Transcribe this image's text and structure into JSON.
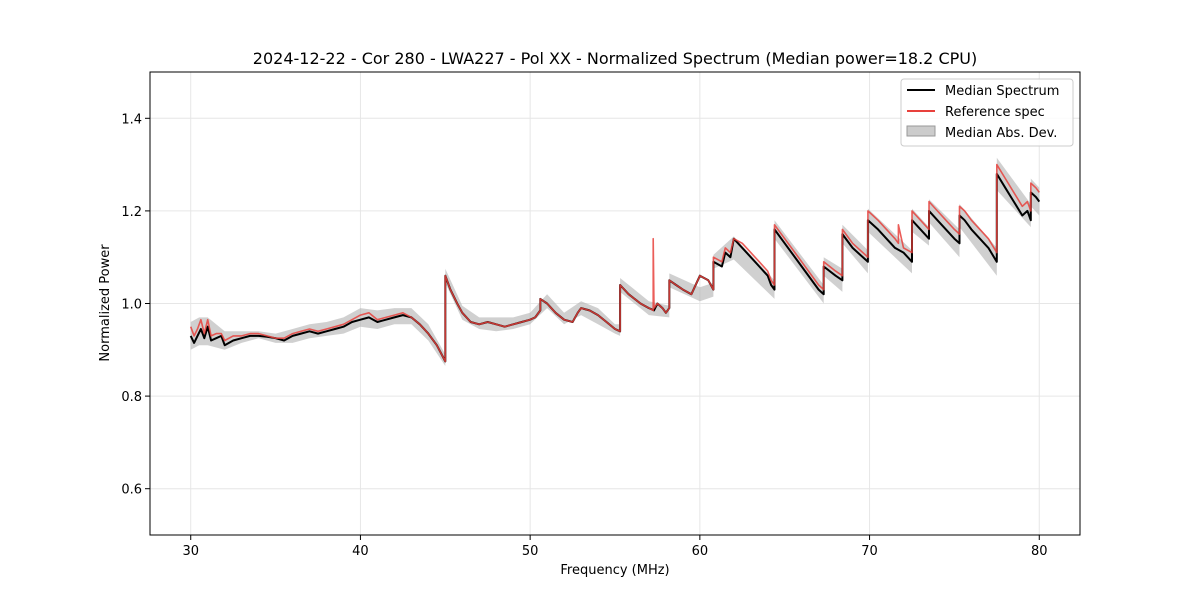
{
  "chart_data": {
    "type": "line",
    "title": "2024-12-22 - Cor 280 - LWA227 - Pol XX - Normalized Spectrum (Median power=18.2 CPU)",
    "xlabel": "Frequency (MHz)",
    "ylabel": "Normalized Power",
    "xlim": [
      27.6,
      82.4
    ],
    "ylim": [
      0.5,
      1.5
    ],
    "xticks": [
      30,
      40,
      50,
      60,
      70,
      80
    ],
    "yticks": [
      0.6,
      0.8,
      1.0,
      1.2,
      1.4
    ],
    "xtick_labels": [
      "30",
      "40",
      "50",
      "60",
      "70",
      "80"
    ],
    "ytick_labels": [
      "0.6",
      "0.8",
      "1.0",
      "1.2",
      "1.4"
    ],
    "grid": true,
    "legend_position": "top-right",
    "legend": [
      {
        "label": "Median Spectrum",
        "kind": "line",
        "color": "#000000"
      },
      {
        "label": "Reference spec",
        "kind": "line",
        "color": "#e8413c"
      },
      {
        "label": "Median Abs. Dev.",
        "kind": "band",
        "color": "#b0b0b0"
      }
    ],
    "series": [
      {
        "name": "Median Spectrum",
        "color": "#000000",
        "x": [
          30.0,
          30.2,
          30.4,
          30.6,
          30.8,
          31.0,
          31.2,
          31.5,
          31.8,
          32.0,
          32.5,
          33.0,
          33.5,
          34.0,
          34.5,
          35.0,
          35.5,
          36.0,
          36.5,
          37.0,
          37.5,
          38.0,
          38.5,
          39.0,
          39.5,
          40.0,
          40.5,
          41.0,
          41.5,
          42.0,
          42.5,
          43.0,
          43.5,
          44.0,
          44.5,
          45.0,
          45.0,
          45.3,
          45.7,
          46.0,
          46.5,
          47.0,
          47.5,
          48.0,
          48.5,
          49.0,
          49.5,
          50.0,
          50.3,
          50.6,
          50.6,
          51.0,
          51.5,
          52.0,
          52.5,
          52.8,
          53.0,
          53.5,
          54.0,
          54.5,
          55.0,
          55.3,
          55.3,
          55.8,
          56.5,
          57.0,
          57.3,
          57.5,
          57.8,
          58.0,
          58.2,
          58.2,
          58.6,
          59.0,
          59.5,
          60.0,
          60.5,
          60.8,
          60.8,
          61.3,
          61.5,
          61.8,
          62.0,
          62.5,
          63.0,
          63.5,
          64.0,
          64.2,
          64.4,
          64.4,
          65.0,
          66.0,
          67.0,
          67.3,
          67.3,
          68.0,
          68.4,
          68.4,
          69.0,
          69.9,
          69.9,
          70.5,
          71.0,
          71.5,
          72.0,
          72.5,
          72.5,
          73.0,
          73.5,
          73.5,
          74.0,
          74.5,
          75.0,
          75.3,
          75.3,
          75.6,
          76.0,
          76.5,
          77.0,
          77.5,
          77.5,
          78.0,
          78.5,
          79.0,
          79.3,
          79.5,
          79.5,
          79.8,
          80.0
        ],
        "values": [
          0.93,
          0.915,
          0.93,
          0.945,
          0.925,
          0.95,
          0.92,
          0.925,
          0.93,
          0.91,
          0.92,
          0.925,
          0.93,
          0.93,
          0.928,
          0.925,
          0.92,
          0.93,
          0.935,
          0.94,
          0.935,
          0.94,
          0.945,
          0.95,
          0.96,
          0.965,
          0.97,
          0.96,
          0.965,
          0.97,
          0.975,
          0.97,
          0.955,
          0.935,
          0.91,
          0.875,
          1.06,
          1.03,
          1.0,
          0.98,
          0.96,
          0.955,
          0.96,
          0.955,
          0.95,
          0.955,
          0.96,
          0.965,
          0.97,
          0.985,
          1.01,
          1.0,
          0.98,
          0.965,
          0.96,
          0.98,
          0.99,
          0.985,
          0.975,
          0.96,
          0.945,
          0.94,
          1.04,
          1.02,
          1.0,
          0.99,
          0.985,
          1.0,
          0.99,
          0.98,
          0.99,
          1.05,
          1.04,
          1.03,
          1.02,
          1.06,
          1.05,
          1.03,
          1.09,
          1.08,
          1.11,
          1.1,
          1.14,
          1.12,
          1.1,
          1.08,
          1.06,
          1.04,
          1.03,
          1.16,
          1.13,
          1.08,
          1.03,
          1.02,
          1.08,
          1.06,
          1.05,
          1.15,
          1.12,
          1.09,
          1.18,
          1.16,
          1.14,
          1.12,
          1.11,
          1.09,
          1.18,
          1.16,
          1.14,
          1.2,
          1.18,
          1.16,
          1.14,
          1.13,
          1.19,
          1.18,
          1.16,
          1.14,
          1.12,
          1.09,
          1.28,
          1.25,
          1.22,
          1.19,
          1.2,
          1.18,
          1.24,
          1.23,
          1.22
        ]
      },
      {
        "name": "Reference spec",
        "color": "#e8413c",
        "x": [
          30.0,
          30.2,
          30.4,
          30.6,
          30.8,
          31.0,
          31.2,
          31.5,
          31.8,
          32.0,
          32.5,
          33.0,
          33.5,
          34.0,
          34.5,
          35.0,
          35.5,
          36.0,
          36.5,
          37.0,
          37.5,
          38.0,
          38.5,
          39.0,
          39.5,
          40.0,
          40.5,
          41.0,
          41.5,
          42.0,
          42.5,
          43.0,
          43.5,
          44.0,
          44.5,
          45.0,
          45.0,
          45.3,
          45.7,
          46.0,
          46.5,
          47.0,
          47.5,
          48.0,
          48.5,
          49.0,
          49.5,
          50.0,
          50.3,
          50.6,
          50.6,
          51.0,
          51.5,
          52.0,
          52.5,
          52.8,
          53.0,
          53.5,
          54.0,
          54.5,
          55.0,
          55.3,
          55.3,
          55.8,
          56.5,
          57.0,
          57.25,
          57.25,
          57.3,
          57.5,
          57.8,
          58.0,
          58.2,
          58.2,
          58.6,
          59.0,
          59.5,
          60.0,
          60.5,
          60.8,
          60.8,
          61.3,
          61.5,
          61.8,
          62.0,
          62.5,
          63.0,
          63.5,
          64.0,
          64.2,
          64.4,
          64.4,
          65.0,
          66.0,
          67.0,
          67.3,
          67.3,
          68.0,
          68.4,
          68.4,
          69.0,
          69.9,
          69.9,
          70.5,
          71.0,
          71.5,
          71.7,
          71.7,
          72.0,
          72.5,
          72.5,
          73.0,
          73.5,
          73.5,
          74.0,
          74.5,
          75.0,
          75.3,
          75.3,
          75.6,
          76.0,
          76.5,
          77.0,
          77.5,
          77.5,
          78.0,
          78.5,
          79.0,
          79.3,
          79.5,
          79.5,
          79.8,
          80.0
        ],
        "values": [
          0.95,
          0.93,
          0.945,
          0.965,
          0.935,
          0.965,
          0.93,
          0.935,
          0.935,
          0.92,
          0.93,
          0.93,
          0.935,
          0.935,
          0.93,
          0.925,
          0.925,
          0.935,
          0.94,
          0.945,
          0.94,
          0.945,
          0.95,
          0.955,
          0.965,
          0.975,
          0.98,
          0.965,
          0.97,
          0.975,
          0.98,
          0.97,
          0.955,
          0.935,
          0.91,
          0.875,
          1.06,
          1.03,
          1.0,
          0.98,
          0.96,
          0.955,
          0.96,
          0.955,
          0.95,
          0.955,
          0.96,
          0.965,
          0.97,
          0.985,
          1.01,
          1.0,
          0.98,
          0.965,
          0.96,
          0.98,
          0.99,
          0.985,
          0.975,
          0.96,
          0.945,
          0.94,
          1.04,
          1.02,
          1.0,
          0.99,
          0.985,
          1.14,
          0.99,
          1.0,
          0.99,
          0.98,
          0.99,
          1.05,
          1.04,
          1.03,
          1.02,
          1.06,
          1.05,
          1.03,
          1.1,
          1.09,
          1.12,
          1.11,
          1.14,
          1.13,
          1.11,
          1.09,
          1.07,
          1.05,
          1.04,
          1.17,
          1.14,
          1.09,
          1.04,
          1.03,
          1.09,
          1.07,
          1.06,
          1.16,
          1.13,
          1.1,
          1.2,
          1.18,
          1.16,
          1.14,
          1.13,
          1.17,
          1.12,
          1.11,
          1.2,
          1.18,
          1.16,
          1.22,
          1.2,
          1.18,
          1.16,
          1.15,
          1.21,
          1.2,
          1.18,
          1.16,
          1.14,
          1.11,
          1.3,
          1.27,
          1.24,
          1.21,
          1.22,
          1.2,
          1.26,
          1.25,
          1.24
        ]
      },
      {
        "name": "Median Abs. Dev.",
        "kind": "band",
        "color": "#b0b0b0",
        "x": [
          30.0,
          30.5,
          31.0,
          32.0,
          33.0,
          34.0,
          35.0,
          36.0,
          37.0,
          38.0,
          39.0,
          40.0,
          41.0,
          42.0,
          43.0,
          44.0,
          45.0,
          45.0,
          46.0,
          47.0,
          48.0,
          49.0,
          50.0,
          51.0,
          52.0,
          53.0,
          54.0,
          55.0,
          55.3,
          55.3,
          57.0,
          58.2,
          58.2,
          60.0,
          60.8,
          60.8,
          62.0,
          64.4,
          64.4,
          67.3,
          67.3,
          68.4,
          68.4,
          69.9,
          69.9,
          72.5,
          72.5,
          73.5,
          73.5,
          75.3,
          75.3,
          77.5,
          77.5,
          79.5,
          79.5,
          80.0
        ],
        "lower": [
          0.9,
          0.91,
          0.91,
          0.9,
          0.915,
          0.925,
          0.915,
          0.915,
          0.925,
          0.93,
          0.935,
          0.95,
          0.945,
          0.955,
          0.955,
          0.92,
          0.865,
          1.045,
          0.965,
          0.945,
          0.94,
          0.945,
          0.955,
          0.99,
          0.955,
          0.975,
          0.955,
          0.935,
          0.93,
          1.025,
          0.975,
          0.97,
          1.035,
          1.005,
          1.015,
          1.075,
          1.095,
          1.01,
          1.14,
          1.0,
          1.06,
          1.025,
          1.13,
          1.065,
          1.155,
          1.065,
          1.155,
          1.125,
          1.175,
          1.1,
          1.165,
          1.06,
          1.245,
          1.165,
          1.21,
          1.19
        ],
        "upper": [
          0.96,
          0.97,
          0.97,
          0.94,
          0.94,
          0.94,
          0.935,
          0.945,
          0.955,
          0.96,
          0.97,
          0.99,
          0.985,
          0.99,
          0.99,
          0.955,
          0.89,
          1.075,
          0.995,
          0.97,
          0.97,
          0.97,
          0.98,
          1.02,
          0.98,
          1.005,
          0.99,
          0.955,
          0.955,
          1.055,
          1.005,
          0.995,
          1.065,
          1.035,
          1.045,
          1.105,
          1.145,
          1.05,
          1.18,
          1.04,
          1.1,
          1.075,
          1.17,
          1.115,
          1.205,
          1.115,
          1.205,
          1.165,
          1.225,
          1.16,
          1.215,
          1.12,
          1.315,
          1.215,
          1.27,
          1.25
        ]
      }
    ]
  }
}
